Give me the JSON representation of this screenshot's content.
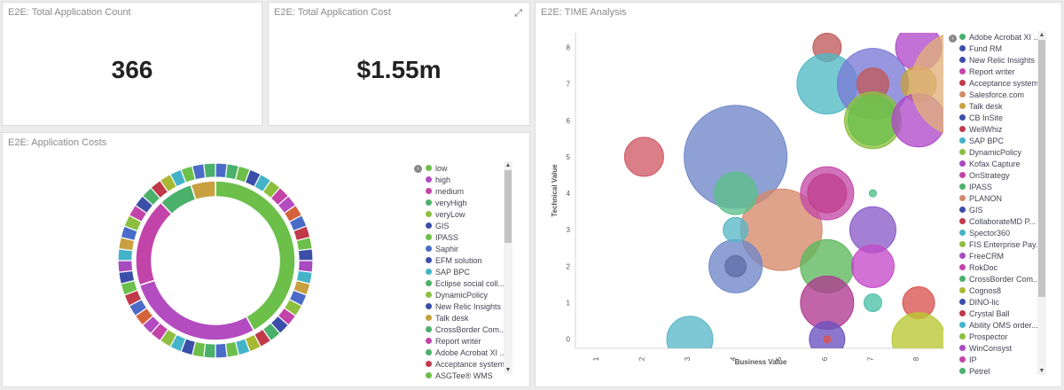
{
  "panels": {
    "count": {
      "title": "E2E: Total Application Count",
      "value": "366"
    },
    "cost": {
      "title": "E2E: Total Application Cost",
      "value": "$1.55m",
      "expand_icon": "expand-icon"
    },
    "app_costs": {
      "title": "E2E: Application Costs"
    },
    "time": {
      "title": "E2E: TIME Analysis"
    }
  },
  "chart_data": [
    {
      "type": "pie",
      "variant": "donut-two-ring",
      "inner_ring": [
        {
          "label": "low",
          "value": 42,
          "color": "#6cc04a"
        },
        {
          "label": "high",
          "value": 28,
          "color": "#b24cc0"
        },
        {
          "label": "medium",
          "value": 18,
          "color": "#c244a8"
        },
        {
          "label": "veryHigh",
          "value": 7,
          "color": "#4ab06a"
        },
        {
          "label": "veryLow",
          "value": 5,
          "color": "#c8a040"
        }
      ],
      "outer_ring_colors": [
        "#4a6cc8",
        "#4ab06a",
        "#6cc04a",
        "#3b4fa8",
        "#44b3c8",
        "#8cbf3f",
        "#c244a8",
        "#b24cc0",
        "#d4623a",
        "#4a6cc8",
        "#c03a4a",
        "#6cc04a",
        "#3b4fa8",
        "#a84ac0",
        "#44b3c8",
        "#c8a040",
        "#4a6cc8",
        "#8cbf3f",
        "#c244a8",
        "#3b4fa8",
        "#4ab06a",
        "#c03a4a",
        "#a8b832",
        "#44b3c8",
        "#6cc04a"
      ],
      "legend": [
        "low",
        "high",
        "medium",
        "veryHigh",
        "veryLow",
        "GIS",
        "IPASS",
        "Saphir",
        "EFM solution",
        "SAP BPC",
        "Eclipse social coll...",
        "DynamicPolicy",
        "New Relic Insights",
        "Talk desk",
        "CrossBorder Com...",
        "Report writer",
        "Adobe Acrobat XI ...",
        "Acceptance system",
        "ASGTee® WMS"
      ],
      "legend_colors": [
        "#6cc04a",
        "#b24cc0",
        "#c244a8",
        "#4ab06a",
        "#8cbf3f",
        "#3b4fa8",
        "#6cc04a",
        "#4a6cc8",
        "#3b4fa8",
        "#44b3c8",
        "#4ab06a",
        "#8cbf3f",
        "#3b4fa8",
        "#c8a040",
        "#4ab06a",
        "#c244a8",
        "#4ab06a",
        "#c03a4a",
        "#6cc04a"
      ]
    },
    {
      "type": "scatter",
      "variant": "bubble",
      "xlabel": "Business Value",
      "ylabel": "Technical Value",
      "xlim": [
        0.5,
        8.6
      ],
      "ylim": [
        -0.25,
        8.4
      ],
      "xticks": [
        "1",
        "2",
        "3",
        "4",
        "5",
        "6",
        "7",
        "8"
      ],
      "yticks": [
        "0",
        "1",
        "2",
        "3",
        "4",
        "5",
        "6",
        "7",
        "8"
      ],
      "points": [
        {
          "x": 4,
          "y": 5,
          "r": 58,
          "color": "#6f87c8"
        },
        {
          "x": 5,
          "y": 3,
          "r": 46,
          "color": "#d6896a"
        },
        {
          "x": 2,
          "y": 5,
          "r": 22,
          "color": "#cf5a66"
        },
        {
          "x": 3,
          "y": 0,
          "r": 26,
          "color": "#5ab7c8"
        },
        {
          "x": 4,
          "y": 2,
          "r": 30,
          "color": "#6f87c8"
        },
        {
          "x": 4,
          "y": 2,
          "r": 12,
          "color": "#5f6fa8"
        },
        {
          "x": 4,
          "y": 3,
          "r": 14,
          "color": "#5ab7c8"
        },
        {
          "x": 4,
          "y": 4,
          "r": 24,
          "color": "#5cc08a"
        },
        {
          "x": 6,
          "y": 8,
          "r": 16,
          "color": "#c05a5a"
        },
        {
          "x": 6,
          "y": 7,
          "r": 34,
          "color": "#4fb8c4"
        },
        {
          "x": 6,
          "y": 4,
          "r": 30,
          "color": "#c44aa8"
        },
        {
          "x": 6,
          "y": 4,
          "r": 22,
          "color": "#c0408f"
        },
        {
          "x": 6,
          "y": 2,
          "r": 30,
          "color": "#5cb85c"
        },
        {
          "x": 6,
          "y": 1,
          "r": 30,
          "color": "#b03a90"
        },
        {
          "x": 6,
          "y": 0,
          "r": 20,
          "color": "#6a52c0"
        },
        {
          "x": 6,
          "y": 0,
          "r": 4,
          "color": "#d9534f"
        },
        {
          "x": 7,
          "y": 7,
          "r": 40,
          "color": "#7a7ad6"
        },
        {
          "x": 7,
          "y": 7,
          "r": 18,
          "color": "#c05a5a"
        },
        {
          "x": 7,
          "y": 6,
          "r": 32,
          "color": "#8cbf3f"
        },
        {
          "x": 7,
          "y": 6,
          "r": 28,
          "color": "#6cc04a"
        },
        {
          "x": 7,
          "y": 4,
          "r": 4,
          "color": "#4cc08a"
        },
        {
          "x": 7,
          "y": 3,
          "r": 26,
          "color": "#8a5cc8"
        },
        {
          "x": 7,
          "y": 2,
          "r": 24,
          "color": "#c44ac8"
        },
        {
          "x": 7,
          "y": 1,
          "r": 10,
          "color": "#4cc0a8"
        },
        {
          "x": 8,
          "y": 8,
          "r": 26,
          "color": "#b04ac8"
        },
        {
          "x": 8,
          "y": 7,
          "r": 20,
          "color": "#c8a040"
        },
        {
          "x": 8,
          "y": 6,
          "r": 30,
          "color": "#b04ac8"
        },
        {
          "x": 8,
          "y": 1,
          "r": 18,
          "color": "#d9534f"
        },
        {
          "x": 8,
          "y": 0,
          "r": 30,
          "color": "#b8c832"
        },
        {
          "x": 9,
          "y": 7,
          "r": 60,
          "color": "#e0b07a"
        }
      ],
      "legend": [
        "Adobe Acrobat XI ...",
        "Fund RM",
        "New Relic Insights",
        "Report writer",
        "Acceptance system",
        "Salesforce.com",
        "Talk desk",
        "CB InSite",
        "WellWhiz",
        "SAP BPC",
        "DynamicPolicy",
        "Kofax Capture",
        "OnStrategy",
        "IPASS",
        "PLANON",
        "GIS",
        "CollaborateMD P...",
        "Spector360",
        "FIS Enterprise Pay...",
        "FreeCRM",
        "RokDoc",
        "CrossBorder Com...",
        "Cognos8",
        "DINO-lic",
        "Crystal Ball",
        "Ability OMS order...",
        "Prospector",
        "WinConsyst",
        "IP",
        "Petrel"
      ],
      "legend_colors": [
        "#4ab06a",
        "#3b4fa8",
        "#3b4fa8",
        "#c244a8",
        "#c03a4a",
        "#d4896a",
        "#c8a040",
        "#3b4fa8",
        "#c03a4a",
        "#44b3c8",
        "#8cbf3f",
        "#a84ac0",
        "#c244a8",
        "#4ab06a",
        "#d4896a",
        "#3b4fa8",
        "#c03a4a",
        "#44b3c8",
        "#8cbf3f",
        "#a84ac0",
        "#c244a8",
        "#4ab06a",
        "#a8b832",
        "#3b4fa8",
        "#c03a4a",
        "#44b3c8",
        "#8cbf3f",
        "#a84ac0",
        "#c244a8",
        "#4ab06a"
      ]
    }
  ]
}
